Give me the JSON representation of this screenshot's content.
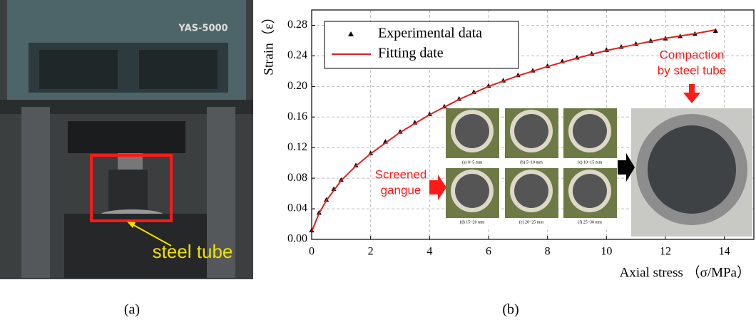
{
  "panels": {
    "a": {
      "label": "(a)",
      "machine_text": "YAS-5000",
      "annotation": "steel tube"
    },
    "b": {
      "label": "(b)"
    }
  },
  "chart_data": {
    "type": "line",
    "x_label": "Axial stress （σ/MPa）",
    "y_label": "Strain（ε）",
    "xlim": [
      0,
      15
    ],
    "ylim": [
      0,
      0.3
    ],
    "xticks": [
      0,
      2,
      4,
      6,
      8,
      10,
      12,
      14
    ],
    "yticks": [
      {
        "value": 0,
        "label": "0.00"
      },
      0.04,
      0.08,
      0.12,
      0.16,
      {
        "value": 0.2,
        "label": "0.20"
      },
      0.24,
      0.28
    ],
    "grid": true,
    "legend": "upper left",
    "series": [
      {
        "name": "Experimental data",
        "color": "#000000",
        "style": "markers",
        "x": [
          0,
          0.25,
          0.5,
          0.75,
          1,
          1.5,
          2,
          2.5,
          3,
          3.5,
          4,
          4.5,
          5,
          5.5,
          6,
          6.5,
          7,
          7.5,
          8,
          8.5,
          9,
          9.5,
          10,
          10.5,
          11,
          11.5,
          12,
          12.5,
          13,
          13.7
        ],
        "values": [
          0.012,
          0.035,
          0.052,
          0.066,
          0.078,
          0.097,
          0.113,
          0.128,
          0.141,
          0.153,
          0.164,
          0.174,
          0.184,
          0.193,
          0.201,
          0.208,
          0.215,
          0.221,
          0.227,
          0.233,
          0.238,
          0.243,
          0.248,
          0.252,
          0.256,
          0.26,
          0.263,
          0.266,
          0.269,
          0.273
        ]
      },
      {
        "name": "Fitting date",
        "color": "#e02020",
        "style": "line",
        "x": [
          0,
          0.25,
          0.5,
          1,
          1.5,
          2,
          3,
          4,
          5,
          6,
          7,
          8,
          9,
          10,
          11,
          12,
          13,
          13.7
        ],
        "values": [
          0.01,
          0.034,
          0.051,
          0.077,
          0.096,
          0.112,
          0.14,
          0.163,
          0.183,
          0.2,
          0.214,
          0.226,
          0.237,
          0.247,
          0.255,
          0.263,
          0.269,
          0.274
        ]
      }
    ],
    "annotations": [
      {
        "lines": [
          "Screened",
          "gangue"
        ]
      },
      {
        "lines": [
          "Compaction",
          "by steel tube"
        ]
      }
    ],
    "inset_captions": [
      "(a) 0~5 mm",
      "(b) 5~10 mm",
      "(c) 10~15 mm",
      "(d) 15~20 mm",
      "(e) 20~25 mm",
      "(f) 25~30 mm"
    ]
  }
}
